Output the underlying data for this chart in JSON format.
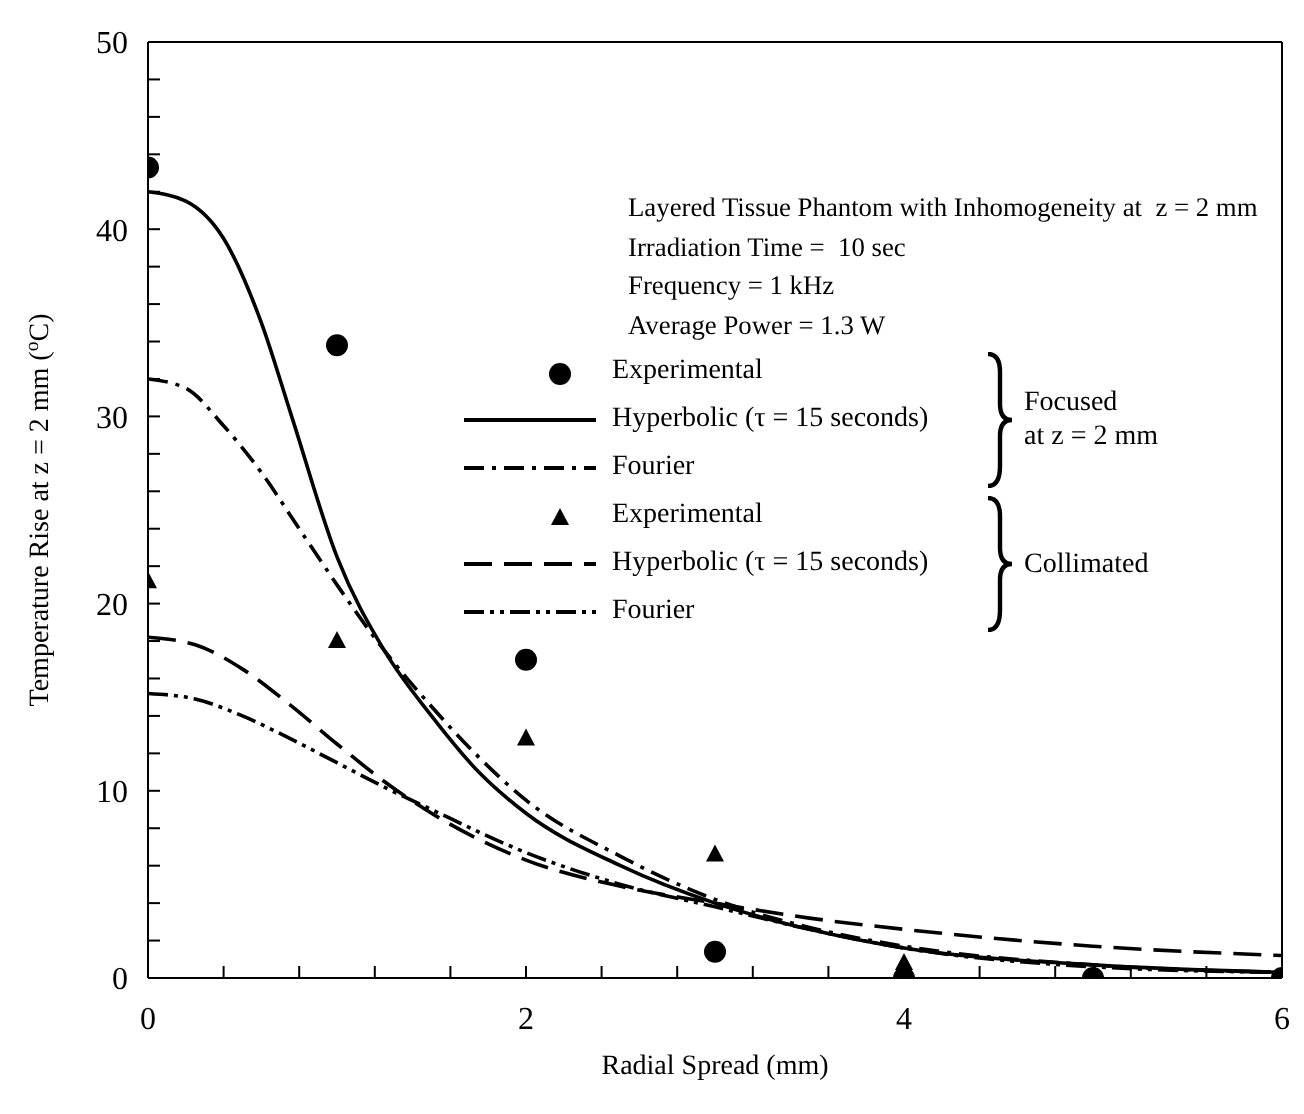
{
  "chart_data": {
    "type": "line",
    "xlabel": "Radial Spread (mm)",
    "ylabel": "Temperature Rise at z = 2 mm ($^{o}$C)",
    "xlim": [
      0,
      6
    ],
    "ylim": [
      0,
      50
    ],
    "xticks": [
      0,
      {
        "value": 0.4,
        "label": null
      },
      {
        "value": 0.8,
        "label": null
      },
      {
        "value": 1.2,
        "label": null
      },
      {
        "value": 1.6,
        "label": null
      },
      2,
      {
        "value": 2.4,
        "label": null
      },
      {
        "value": 2.8,
        "label": null
      },
      {
        "value": 3.2,
        "label": null
      },
      {
        "value": 3.6,
        "label": null
      },
      4,
      {
        "value": 4.4,
        "label": null
      },
      {
        "value": 4.8,
        "label": null
      },
      {
        "value": 5.2,
        "label": null
      },
      {
        "value": 5.6,
        "label": null
      },
      6
    ],
    "yticks": [
      0,
      {
        "value": 2,
        "label": null
      },
      {
        "value": 4,
        "label": null
      },
      {
        "value": 6,
        "label": null
      },
      {
        "value": 8,
        "label": null
      },
      10,
      {
        "value": 12,
        "label": null
      },
      {
        "value": 14,
        "label": null
      },
      {
        "value": 16,
        "label": null
      },
      {
        "value": 18,
        "label": null
      },
      20,
      {
        "value": 22,
        "label": null
      },
      {
        "value": 24,
        "label": null
      },
      {
        "value": 26,
        "label": null
      },
      {
        "value": 28,
        "label": null
      },
      30,
      {
        "value": 32,
        "label": null
      },
      {
        "value": 34,
        "label": null
      },
      {
        "value": 36,
        "label": null
      },
      {
        "value": 38,
        "label": null
      },
      40,
      {
        "value": 42,
        "label": null
      },
      {
        "value": 44,
        "label": null
      },
      {
        "value": 46,
        "label": null
      },
      {
        "value": 48,
        "label": null
      },
      50
    ],
    "grid": false,
    "legend": "right",
    "annotations": [
      "Layered Tissue Phantom with Inhomogeneity at  z = 2 mm",
      "Irradiation Time =  10 sec",
      "Frequency = 1 kHz",
      "Average Power = 1.3 W",
      "Focused\nat z = 2 mm",
      "Collimated"
    ],
    "series": [
      {
        "name": "Experimental",
        "type": "scatter",
        "marker": "circle",
        "color": "#000000",
        "x": [
          0,
          1,
          2,
          3,
          4,
          5,
          6
        ],
        "values": [
          43.3,
          33.8,
          17,
          1.4,
          0,
          0,
          0
        ]
      },
      {
        "name": "Hyperbolic (τ = 15 seconds)",
        "line_style": "solid",
        "color": "#000000",
        "x": [
          0,
          0.2,
          0.4,
          0.6,
          0.76,
          1,
          1.25,
          1.5,
          1.75,
          2,
          2.5,
          3,
          3.5,
          4,
          5,
          6
        ],
        "values": [
          42,
          41.5,
          39.5,
          35,
          30,
          22.5,
          17.5,
          14,
          11,
          8.8,
          6,
          4,
          2.6,
          1.6,
          0.7,
          0.3
        ]
      },
      {
        "name": "Fourier",
        "line_style": "dashdot",
        "color": "#000000",
        "x": [
          0,
          0.2,
          0.4,
          0.6,
          0.8,
          1,
          1.25,
          1.5,
          1.75,
          2,
          2.5,
          3,
          3.5,
          4,
          5,
          6
        ],
        "values": [
          32,
          31.5,
          29.5,
          27,
          24,
          21,
          17.5,
          14.5,
          11.8,
          9.5,
          6.5,
          4.2,
          2.7,
          1.7,
          0.7,
          0.3
        ]
      },
      {
        "name": "Experimental",
        "type": "scatter",
        "marker": "triangle",
        "color": "#000000",
        "x": [
          0,
          1,
          2,
          3,
          4
        ],
        "values": [
          21.2,
          18,
          12.8,
          6.6,
          0.8
        ]
      },
      {
        "name": "Hyperbolic (τ = 15 seconds)",
        "line_style": "dashed",
        "color": "#000000",
        "x": [
          0,
          0.25,
          0.5,
          0.75,
          1,
          1.25,
          1.5,
          2,
          2.5,
          3,
          3.5,
          4,
          5,
          6
        ],
        "values": [
          18.2,
          17.8,
          16.5,
          14.6,
          12.5,
          10.5,
          8.8,
          6.3,
          4.9,
          4,
          3.2,
          2.6,
          1.7,
          1.2
        ]
      },
      {
        "name": "Fourier",
        "line_style": "dashdotdot",
        "color": "#000000",
        "x": [
          0,
          0.25,
          0.5,
          0.75,
          1,
          1.25,
          1.5,
          2,
          2.5,
          3,
          3.5,
          4,
          5,
          6
        ],
        "values": [
          15.2,
          14.9,
          14,
          12.8,
          11.5,
          10.2,
          9,
          6.7,
          5,
          3.8,
          2.6,
          1.6,
          0.6,
          0.3
        ]
      }
    ]
  }
}
